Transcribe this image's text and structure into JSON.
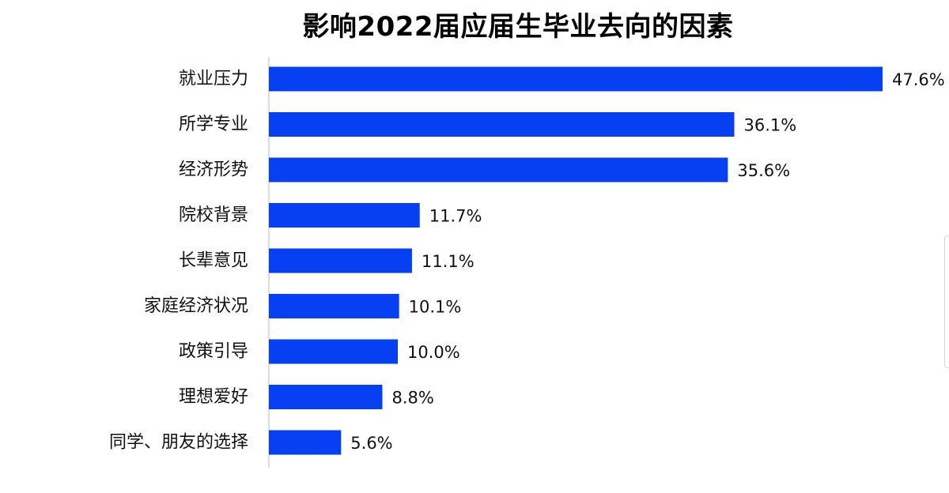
{
  "title": "影响2022届应届生毕业去向的因素",
  "chart_data": {
    "type": "bar",
    "orientation": "horizontal",
    "title": "影响2022届应届生毕业去向的因素",
    "xlabel": "",
    "ylabel": "",
    "categories": [
      "就业压力",
      "所学专业",
      "经济形势",
      "院校背景",
      "长辈意见",
      "家庭经济状况",
      "政策引导",
      "理想爱好",
      "同学、朋友的选择"
    ],
    "values": [
      47.6,
      36.1,
      35.6,
      11.7,
      11.1,
      10.1,
      10.0,
      8.8,
      5.6
    ],
    "value_labels": [
      "47.6%",
      "36.1%",
      "35.6%",
      "11.7%",
      "11.1%",
      "10.1%",
      "10.0%",
      "8.8%",
      "5.6%"
    ],
    "xlim": [
      0,
      47.6
    ],
    "grid": false,
    "legend": "none",
    "bar_color": "#0640f2"
  }
}
